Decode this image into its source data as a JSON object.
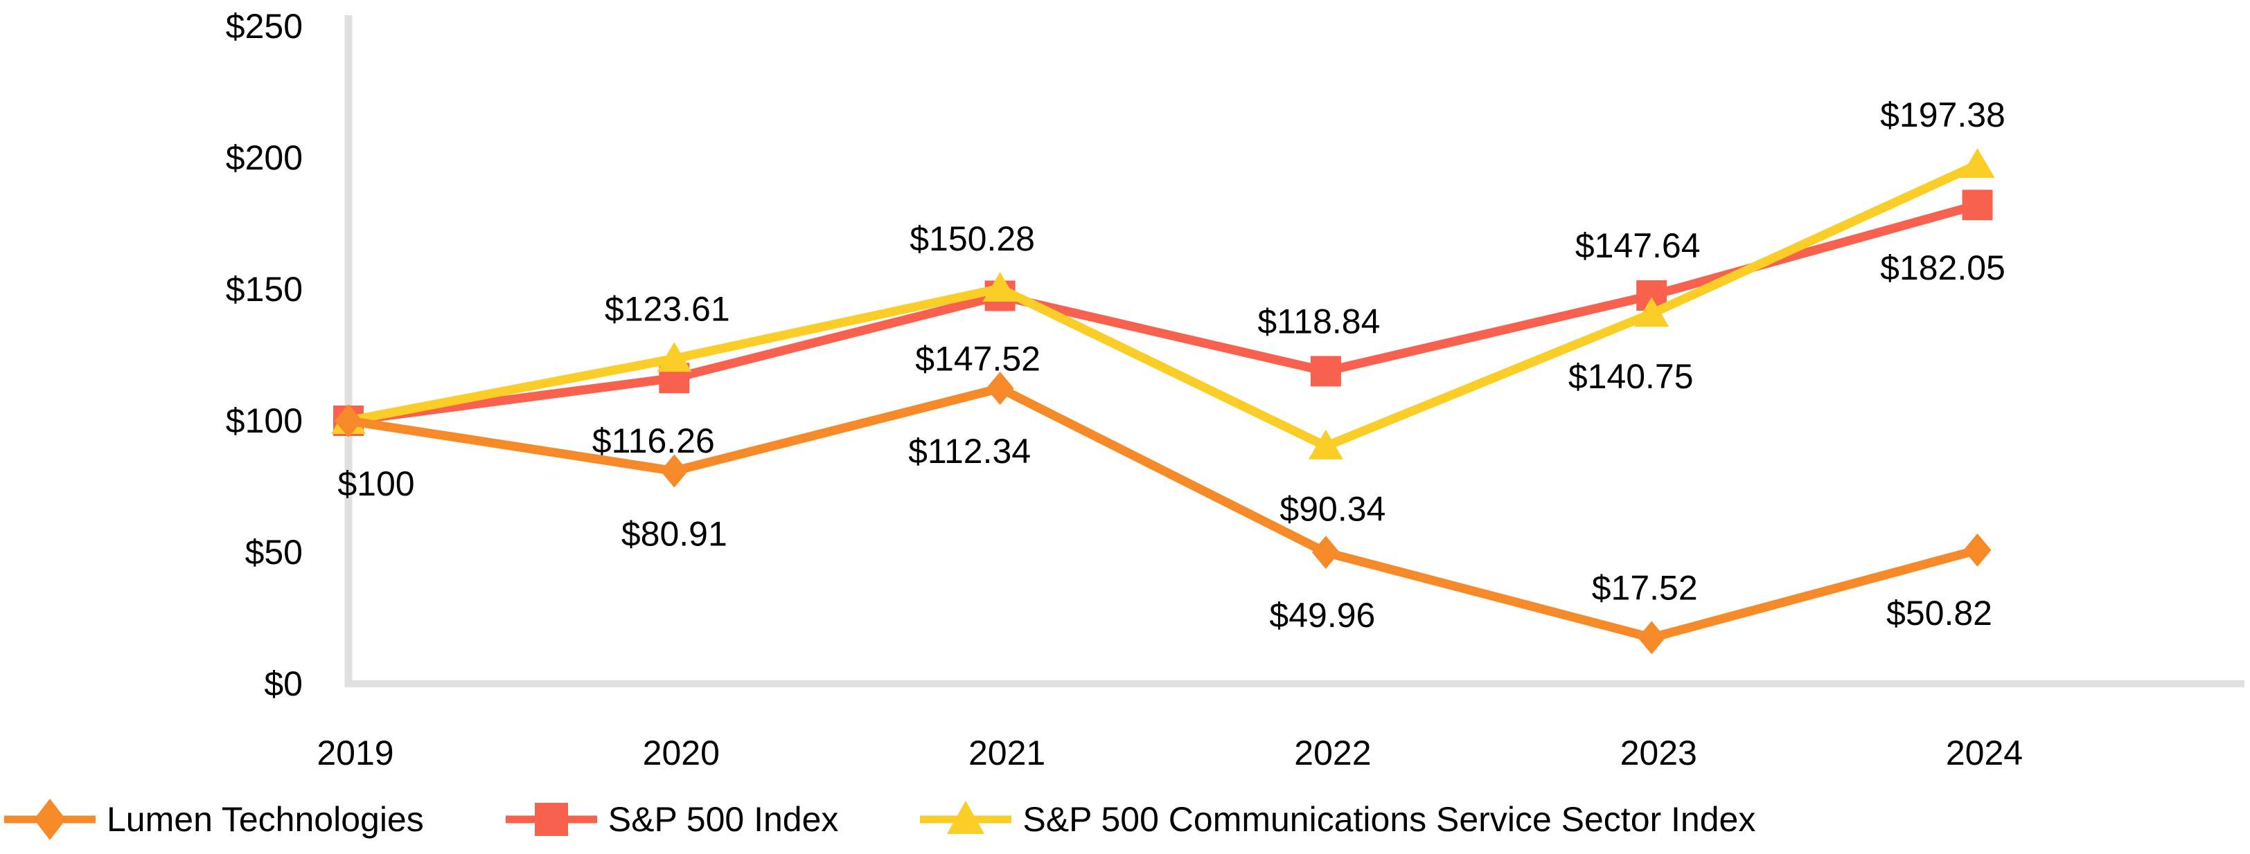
{
  "chart_data": {
    "type": "line",
    "title": "",
    "x_categories": [
      "2019",
      "2020",
      "2021",
      "2022",
      "2023",
      "2024"
    ],
    "y_axis": {
      "min": 0,
      "max": 250,
      "tick_interval": 50,
      "tick_labels": [
        "$0",
        "$50",
        "$100",
        "$150",
        "$200",
        "$250"
      ]
    },
    "grid": "off",
    "legend_position": "bottom-left",
    "axis_color": "#E0E0E0",
    "text_color": "#000000",
    "series": [
      {
        "name": "Lumen Technologies",
        "color": "#F78A28",
        "marker": "diamond",
        "values": [
          100,
          80.91,
          112.34,
          49.96,
          17.52,
          50.82
        ],
        "point_labels": [
          {
            "text": "$100",
            "pos": "below",
            "dx": 40
          },
          {
            "text": "$80.91",
            "pos": "below",
            "dx": 0
          },
          {
            "text": "$112.34",
            "pos": "below",
            "dx": -44
          },
          {
            "text": "$49.96",
            "pos": "below",
            "dx": -5
          },
          {
            "text": "$17.52",
            "pos": "above",
            "dx": -10
          },
          {
            "text": "$50.82",
            "pos": "below",
            "dx": -55
          }
        ]
      },
      {
        "name": "S&P 500 Index",
        "color": "#F7614E",
        "marker": "square",
        "values": [
          100,
          116.26,
          147.52,
          118.84,
          147.64,
          182.05
        ],
        "point_labels": [
          null,
          {
            "text": "$116.26",
            "pos": "below",
            "dx": -30
          },
          {
            "text": "$147.52",
            "pos": "below",
            "dx": -32
          },
          {
            "text": "$118.84",
            "pos": "above",
            "dx": -10
          },
          {
            "text": "$147.64",
            "pos": "above",
            "dx": -20
          },
          {
            "text": "$182.05",
            "pos": "below",
            "dx": -50
          }
        ]
      },
      {
        "name": "S&P 500 Communications Service Sector Index",
        "color": "#FACD27",
        "marker": "triangle",
        "values": [
          100,
          123.61,
          150.28,
          90.34,
          140.75,
          197.38
        ],
        "point_labels": [
          null,
          {
            "text": "$123.61",
            "pos": "above",
            "dx": -10
          },
          {
            "text": "$150.28",
            "pos": "above",
            "dx": -40
          },
          {
            "text": "$90.34",
            "pos": "below",
            "dx": 10
          },
          {
            "text": "$140.75",
            "pos": "below",
            "dx": -30
          },
          {
            "text": "$197.38",
            "pos": "above",
            "dx": -50
          }
        ]
      }
    ]
  }
}
